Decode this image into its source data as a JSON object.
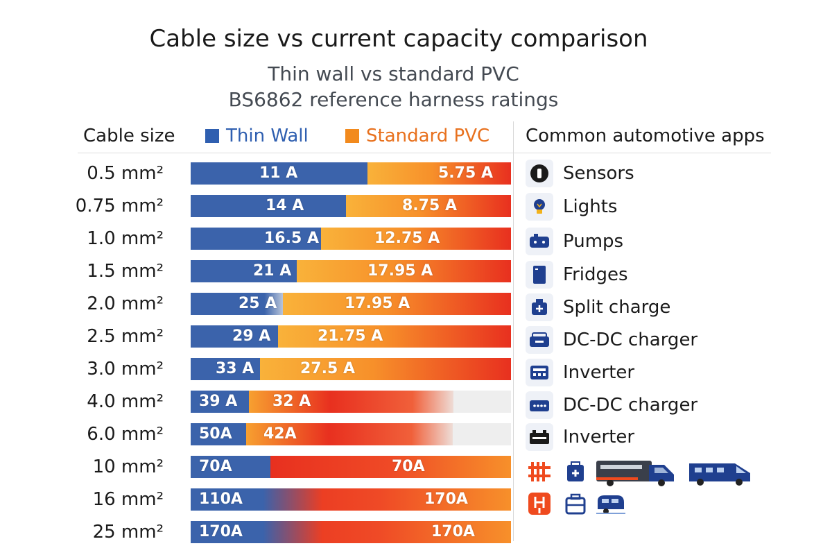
{
  "chart_data": {
    "type": "bar",
    "title": "Cable size vs current capacity comparison",
    "subtitle_lines": [
      "Thin wall vs standard PVC",
      "BS6862 reference harness ratings"
    ],
    "category_header": "Cable size",
    "categories": [
      "0.5 mm²",
      "0.75 mm²",
      "1.0 mm²",
      "1.5 mm²",
      "2.0 mm²",
      "2.5 mm²",
      "3.0 mm²",
      "4.0 mm²",
      "6.0 mm²",
      "10 mm²",
      "16 mm²",
      "25 mm²"
    ],
    "series": [
      {
        "name": "Thin Wall",
        "color": "#2f5fb0",
        "values": [
          11,
          14,
          16.5,
          21,
          25,
          29,
          33,
          39,
          50,
          70,
          110,
          170
        ],
        "labels": [
          "11 A",
          "14 A",
          "16.5 A",
          "21 A",
          "25 A",
          "29 A",
          "33 A",
          "39 A",
          "50A",
          "70A",
          "110A",
          "170A"
        ]
      },
      {
        "name": "Standard PVC",
        "color": "#f28a1d",
        "values": [
          5.75,
          8.75,
          12.75,
          17.95,
          17.95,
          21.75,
          27.5,
          32,
          42,
          70,
          170,
          170
        ],
        "labels": [
          "5.75 A",
          "8.75 A",
          "12.75 A",
          "17.95 A",
          "17.95 A",
          "21.75 A",
          "27.5 A",
          "32 A",
          "42A",
          "70A",
          "170A",
          "170A"
        ]
      }
    ],
    "grid": true,
    "legend_position": "top"
  },
  "apps": {
    "header": "Common automotive apps",
    "items": [
      {
        "label": "Sensors",
        "icon": "sensor-icon"
      },
      {
        "label": "Lights",
        "icon": "bulb-icon"
      },
      {
        "label": "Pumps",
        "icon": "pump-icon"
      },
      {
        "label": "Fridges",
        "icon": "fridge-icon"
      },
      {
        "label": "Split charge",
        "icon": "split-charge-icon"
      },
      {
        "label": "DC-DC charger",
        "icon": "dc-dc-charger-icon"
      },
      {
        "label": "Inverter",
        "icon": "inverter-icon"
      },
      {
        "label": "DC-DC charger",
        "icon": "dc-dc-charger-alt-icon"
      },
      {
        "label": "Inverter",
        "icon": "battery-inverter-icon"
      }
    ],
    "image_icons": [
      "fuse-icon",
      "medical-kit-icon",
      "motorhome-icon",
      "van-icon",
      "fuse-holder-icon",
      "briefcase-icon",
      "caravan-icon"
    ]
  },
  "colors": {
    "thin": "#3b63ab",
    "pvc_light": "#f9b23a",
    "pvc_dark": "#e8301f",
    "icon_navy": "#1f3f8f"
  }
}
